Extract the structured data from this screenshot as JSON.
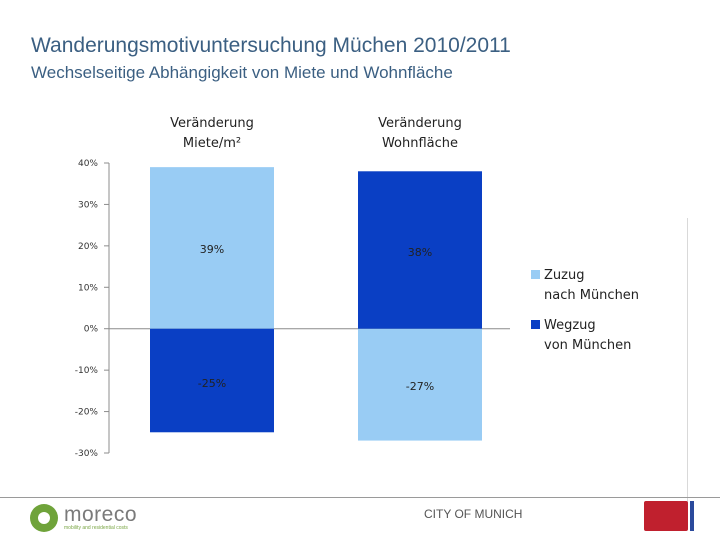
{
  "header": {
    "title": "Wanderungsmotivuntersuchung Müchen 2010/2011",
    "subtitle": "Wechselseitige Abhängigkeit von Miete und Wohnfläche"
  },
  "chart_data": {
    "type": "bar",
    "title": "",
    "xlabel": "",
    "ylabel": "",
    "categories": [
      "Veränderung Miete/m²",
      "Veränderung Wohnfläche"
    ],
    "category_lines": [
      [
        "Veränderung",
        "Miete/m²"
      ],
      [
        "Veränderung",
        "Wohnfläche"
      ]
    ],
    "series": [
      {
        "name": "Zuzug nach München",
        "legend_lines": [
          "Zuzug",
          "nach München"
        ],
        "values": [
          39,
          -27
        ],
        "labels": [
          "39%",
          "-27%"
        ]
      },
      {
        "name": "Wegzug von München",
        "legend_lines": [
          "Wegzug",
          "von München"
        ],
        "values": [
          -25,
          38
        ],
        "labels": [
          "-25%",
          "38%"
        ]
      }
    ],
    "ylim": [
      -30,
      40
    ],
    "yticks": [
      40,
      30,
      20,
      10,
      0,
      -10,
      -20,
      -30
    ],
    "ytick_labels": [
      "40%",
      "30%",
      "20%",
      "10%",
      "0%",
      "-10%",
      "-20%",
      "-30%"
    ],
    "grid": false,
    "legend_position": "right",
    "colors": {
      "Zuzug nach München": "#99ccf4",
      "Wegzug von München": "#0a3fc4"
    }
  },
  "footer": {
    "logo_name": "moreco",
    "logo_tagline": "mobility and residential costs",
    "city": "CITY OF MUNICH"
  },
  "icons": [
    "moreco-logo-icon",
    "region-emblem-icon"
  ]
}
